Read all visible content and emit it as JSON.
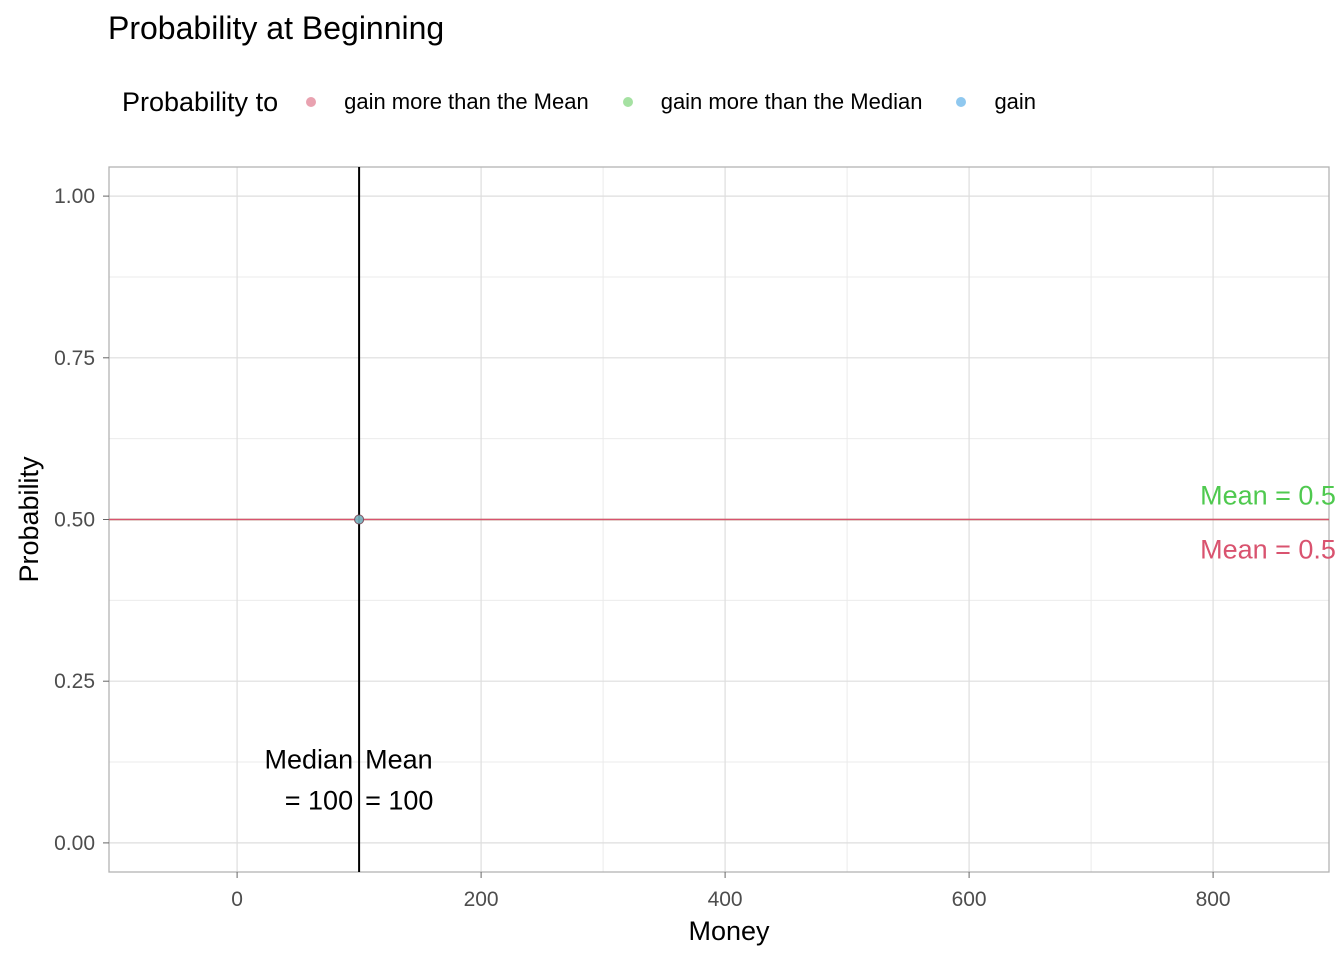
{
  "chart_data": {
    "type": "scatter",
    "title": "Probability at Beginning",
    "xlabel": "Money",
    "ylabel": "Probability",
    "xlim": [
      -105,
      895
    ],
    "ylim": [
      -0.045,
      1.045
    ],
    "x_ticks": [
      0,
      200,
      400,
      600,
      800
    ],
    "x_minor_ticks": [
      100,
      300,
      500,
      700
    ],
    "y_ticks": [
      "0.00",
      "0.25",
      "0.50",
      "0.75",
      "1.00"
    ],
    "y_minor_ticks": [
      0.125,
      0.375,
      0.625,
      0.875
    ],
    "grid": true,
    "legend": {
      "title": "Probability to",
      "position": "top",
      "items": [
        {
          "label": "gain more than the Mean",
          "color": "#e07b8f"
        },
        {
          "label": "gain more than the Median",
          "color": "#7fd47a"
        },
        {
          "label": "gain",
          "color": "#5fb0e8"
        }
      ]
    },
    "series": [
      {
        "name": "gain more than the Mean",
        "color": "#e07b8f",
        "points": [
          [
            100,
            0.5
          ]
        ]
      },
      {
        "name": "gain more than the Median",
        "color": "#7fd47a",
        "points": [
          [
            100,
            0.5
          ]
        ]
      },
      {
        "name": "gain",
        "color": "#5fb0e8",
        "points": [
          [
            100,
            0.5
          ]
        ]
      }
    ],
    "reference_lines": {
      "vertical": {
        "x": 100,
        "color": "#000000"
      },
      "horizontal": [
        {
          "y": 0.5,
          "color": "#7fd47a"
        },
        {
          "y": 0.5,
          "color": "#d9536f"
        }
      ]
    },
    "annotations": [
      {
        "text_lines": [
          "Median",
          "= 100"
        ],
        "x": 100,
        "y": 0.05,
        "align": "right",
        "color": "#000000"
      },
      {
        "text_lines": [
          "Mean",
          "= 100"
        ],
        "x": 100,
        "y": 0.05,
        "align": "left",
        "color": "#000000"
      },
      {
        "text": "Mean = 0.5",
        "x": 845,
        "y": 0.5,
        "position": "above",
        "color": "#4fc94f"
      },
      {
        "text": "Mean = 0.5",
        "x": 845,
        "y": 0.5,
        "position": "below",
        "color": "#d9536f"
      }
    ]
  }
}
